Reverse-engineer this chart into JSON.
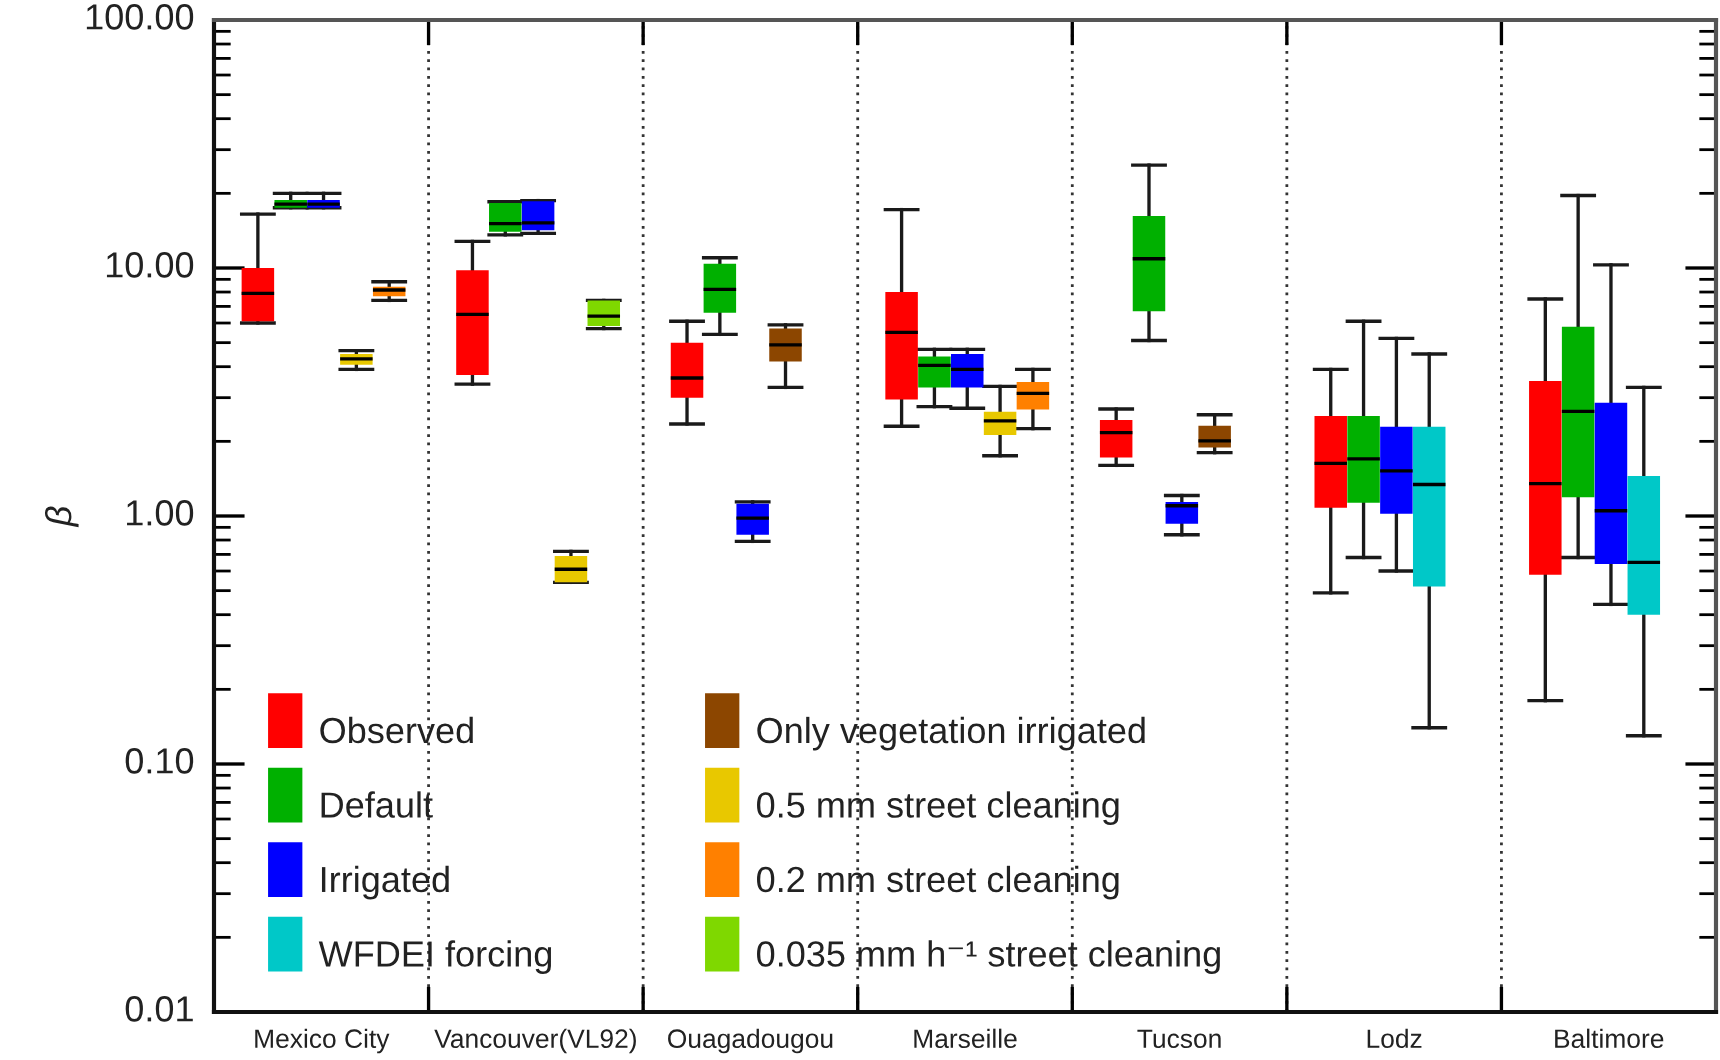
{
  "chart_data": {
    "type": "box",
    "ylabel": "β",
    "categories": [
      "Mexico City",
      "Vancouver(VL92)",
      "Ouagadougou",
      "Marseille",
      "Tucson",
      "Lodz",
      "Baltimore"
    ],
    "series": [
      {
        "name": "Observed",
        "color": "#ff0000",
        "boxes": [
          {
            "low": 6.0,
            "q1": 6.1,
            "median": 7.9,
            "q3": 10.0,
            "high": 16.5
          },
          {
            "low": 3.4,
            "q1": 3.7,
            "median": 6.5,
            "q3": 9.8,
            "high": 12.8
          },
          {
            "low": 2.35,
            "q1": 3.0,
            "median": 3.6,
            "q3": 5.0,
            "high": 6.1
          },
          {
            "low": 2.3,
            "q1": 2.95,
            "median": 5.5,
            "q3": 8.0,
            "high": 17.2
          },
          {
            "low": 1.6,
            "q1": 1.72,
            "median": 2.17,
            "q3": 2.44,
            "high": 2.7
          },
          {
            "low": 0.49,
            "q1": 1.08,
            "median": 1.63,
            "q3": 2.53,
            "high": 3.9
          },
          {
            "low": 0.18,
            "q1": 0.58,
            "median": 1.35,
            "q3": 3.5,
            "high": 7.5
          }
        ]
      },
      {
        "name": "Default",
        "color": "#00b000",
        "boxes": [
          {
            "low": 17.5,
            "q1": 17.5,
            "median": 18.1,
            "q3": 18.8,
            "high": 20.0
          },
          {
            "low": 13.6,
            "q1": 14.0,
            "median": 15.1,
            "q3": 18.3,
            "high": 18.5
          },
          {
            "low": 5.4,
            "q1": 6.6,
            "median": 8.2,
            "q3": 10.4,
            "high": 11.0
          },
          {
            "low": 2.76,
            "q1": 3.3,
            "median": 4.05,
            "q3": 4.4,
            "high": 4.7
          },
          {
            "low": 5.1,
            "q1": 6.7,
            "median": 10.9,
            "q3": 16.2,
            "high": 26.0
          },
          {
            "low": 0.68,
            "q1": 1.13,
            "median": 1.7,
            "q3": 2.53,
            "high": 6.1
          },
          {
            "low": 0.68,
            "q1": 1.19,
            "median": 2.64,
            "q3": 5.8,
            "high": 19.6
          }
        ]
      },
      {
        "name": "Irrigated",
        "color": "#0000ff",
        "boxes": [
          {
            "low": 17.5,
            "q1": 17.5,
            "median": 18.1,
            "q3": 18.8,
            "high": 20.0
          },
          {
            "low": 13.8,
            "q1": 14.2,
            "median": 15.2,
            "q3": 18.6,
            "high": 18.7
          },
          {
            "low": 0.79,
            "q1": 0.84,
            "median": 0.98,
            "q3": 1.12,
            "high": 1.14
          },
          {
            "low": 2.72,
            "q1": 3.3,
            "median": 3.9,
            "q3": 4.5,
            "high": 4.7
          },
          {
            "low": 0.84,
            "q1": 0.93,
            "median": 1.1,
            "q3": 1.14,
            "high": 1.21
          },
          {
            "low": 0.6,
            "q1": 1.02,
            "median": 1.52,
            "q3": 2.29,
            "high": 5.2
          },
          {
            "low": 0.44,
            "q1": 0.64,
            "median": 1.05,
            "q3": 2.86,
            "high": 10.3
          }
        ]
      },
      {
        "name": "WFDEI forcing",
        "color": "#00c8c8",
        "boxes": [
          null,
          null,
          null,
          null,
          null,
          {
            "low": 0.14,
            "q1": 0.52,
            "median": 1.34,
            "q3": 2.29,
            "high": 4.5
          },
          {
            "low": 0.13,
            "q1": 0.4,
            "median": 0.65,
            "q3": 1.45,
            "high": 3.3
          }
        ]
      },
      {
        "name": "Only vegetation irrigated",
        "color": "#8c4600",
        "boxes": [
          null,
          null,
          {
            "low": 3.3,
            "q1": 4.2,
            "median": 4.9,
            "q3": 5.7,
            "high": 5.9
          },
          null,
          {
            "low": 1.8,
            "q1": 1.89,
            "median": 2.01,
            "q3": 2.31,
            "high": 2.56
          },
          null,
          null
        ]
      },
      {
        "name": "0.5 mm street cleaning",
        "color": "#e8c800",
        "boxes": [
          {
            "low": 3.9,
            "q1": 4.07,
            "median": 4.3,
            "q3": 4.5,
            "high": 4.64
          },
          {
            "low": 0.54,
            "q1": 0.54,
            "median": 0.61,
            "q3": 0.69,
            "high": 0.72
          },
          null,
          {
            "low": 1.75,
            "q1": 2.12,
            "median": 2.42,
            "q3": 2.63,
            "high": 3.33
          },
          null,
          null,
          null
        ]
      },
      {
        "name": "0.2 mm street cleaning",
        "color": "#ff8000",
        "boxes": [
          {
            "low": 7.4,
            "q1": 7.7,
            "median": 8.15,
            "q3": 8.4,
            "high": 8.8
          },
          null,
          null,
          {
            "low": 2.25,
            "q1": 2.69,
            "median": 3.12,
            "q3": 3.47,
            "high": 3.9
          },
          null,
          null,
          null
        ]
      },
      {
        "name": "0.035 mm h⁻¹ street cleaning",
        "color": "#7fd800",
        "boxes": [
          null,
          {
            "low": 5.7,
            "q1": 5.83,
            "median": 6.4,
            "q3": 7.4,
            "high": 7.4
          },
          null,
          null,
          null,
          null,
          null
        ]
      }
    ],
    "log": true,
    "ylim": [
      0.01,
      100
    ],
    "yticks": [
      {
        "value": 0.01,
        "label": "0.01"
      },
      {
        "value": 0.1,
        "label": "0.10"
      },
      {
        "value": 1,
        "label": "1.00"
      },
      {
        "value": 10,
        "label": "10.00"
      },
      {
        "value": 100,
        "label": "100.00"
      }
    ],
    "grid": "x",
    "legend": "bottom left"
  }
}
